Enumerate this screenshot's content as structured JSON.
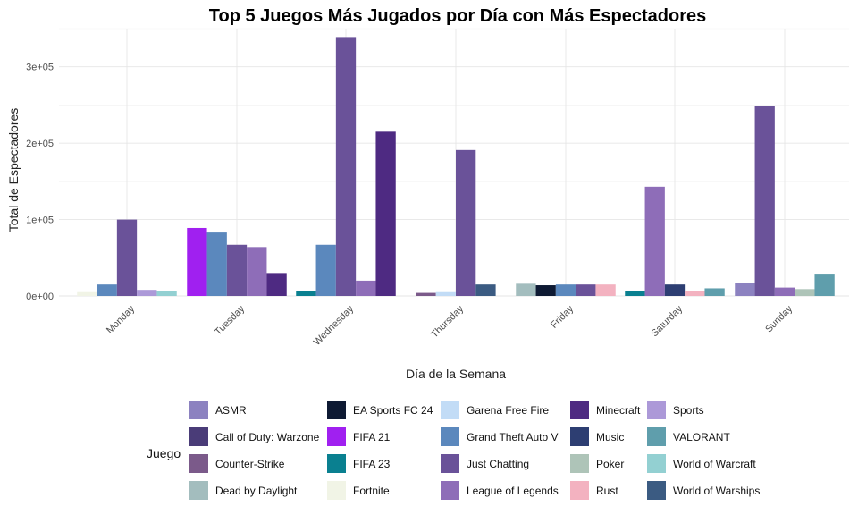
{
  "chart_data": {
    "type": "bar",
    "title": "Top 5 Juegos Más Jugados por Día con Más Espectadores",
    "xlabel": "Día de la Semana",
    "ylabel": "Total de Espectadores",
    "ylim": [
      0,
      350000
    ],
    "yticks": [
      0,
      100000,
      200000,
      300000
    ],
    "ytick_labels": [
      "0e+00",
      "1e+05",
      "2e+05",
      "3e+05"
    ],
    "grid": true,
    "legend_title": "Juego",
    "legend_position": "bottom",
    "categories": [
      "Monday",
      "Tuesday",
      "Wednesday",
      "Thursday",
      "Friday",
      "Saturday",
      "Sunday"
    ],
    "legend": [
      {
        "name": "ASMR",
        "color": "#8c82c0"
      },
      {
        "name": "Call of Duty: Warzone",
        "color": "#4a3c78"
      },
      {
        "name": "Counter-Strike",
        "color": "#7b5a8a"
      },
      {
        "name": "Dead by Daylight",
        "color": "#a3bdbe"
      },
      {
        "name": "EA Sports FC 24",
        "color": "#0e1a33"
      },
      {
        "name": "FIFA 21",
        "color": "#a020f0"
      },
      {
        "name": "FIFA 23",
        "color": "#0a8090"
      },
      {
        "name": "Fortnite",
        "color": "#f1f4e6"
      },
      {
        "name": "Garena Free Fire",
        "color": "#c2dcf6"
      },
      {
        "name": "Grand Theft Auto V",
        "color": "#5b88bd"
      },
      {
        "name": "Just Chatting",
        "color": "#6a5299"
      },
      {
        "name": "League of Legends",
        "color": "#8e6db8"
      },
      {
        "name": "Minecraft",
        "color": "#4e2a82"
      },
      {
        "name": "Music",
        "color": "#2d3e72"
      },
      {
        "name": "Poker",
        "color": "#aec4b8"
      },
      {
        "name": "Rust",
        "color": "#f3b2c0"
      },
      {
        "name": "Sports",
        "color": "#ac99d8"
      },
      {
        "name": "VALORANT",
        "color": "#5f9eac"
      },
      {
        "name": "World of Warcraft",
        "color": "#93d0d2"
      },
      {
        "name": "World of Warships",
        "color": "#3b5b82"
      }
    ],
    "groups": [
      {
        "day": "Monday",
        "bars": [
          {
            "game": "Fortnite",
            "value": 5000
          },
          {
            "game": "Grand Theft Auto V",
            "value": 15000
          },
          {
            "game": "Just Chatting",
            "value": 100000
          },
          {
            "game": "Sports",
            "value": 8000
          },
          {
            "game": "World of Warcraft",
            "value": 6000
          }
        ]
      },
      {
        "day": "Tuesday",
        "bars": [
          {
            "game": "FIFA 21",
            "value": 89000
          },
          {
            "game": "Grand Theft Auto V",
            "value": 83000
          },
          {
            "game": "Just Chatting",
            "value": 67000
          },
          {
            "game": "League of Legends",
            "value": 64000
          },
          {
            "game": "Minecraft",
            "value": 30000
          }
        ]
      },
      {
        "day": "Wednesday",
        "bars": [
          {
            "game": "FIFA 23",
            "value": 7000
          },
          {
            "game": "Grand Theft Auto V",
            "value": 67000
          },
          {
            "game": "Just Chatting",
            "value": 339000
          },
          {
            "game": "League of Legends",
            "value": 20000
          },
          {
            "game": "Minecraft",
            "value": 215000
          }
        ]
      },
      {
        "day": "Thursday",
        "bars": [
          {
            "game": "Counter-Strike",
            "value": 4000
          },
          {
            "game": "Garena Free Fire",
            "value": 5000
          },
          {
            "game": "Just Chatting",
            "value": 191000
          },
          {
            "game": "World of Warships",
            "value": 15000
          }
        ]
      },
      {
        "day": "Friday",
        "bars": [
          {
            "game": "Dead by Daylight",
            "value": 16000
          },
          {
            "game": "EA Sports FC 24",
            "value": 14000
          },
          {
            "game": "Grand Theft Auto V",
            "value": 15000
          },
          {
            "game": "Just Chatting",
            "value": 15000
          },
          {
            "game": "Rust",
            "value": 15000
          }
        ]
      },
      {
        "day": "Saturday",
        "bars": [
          {
            "game": "FIFA 23",
            "value": 6000
          },
          {
            "game": "League of Legends",
            "value": 143000
          },
          {
            "game": "Music",
            "value": 15000
          },
          {
            "game": "Rust",
            "value": 6000
          },
          {
            "game": "VALORANT",
            "value": 10000
          }
        ]
      },
      {
        "day": "Sunday",
        "bars": [
          {
            "game": "ASMR",
            "value": 17000
          },
          {
            "game": "Just Chatting",
            "value": 249000
          },
          {
            "game": "League of Legends",
            "value": 11000
          },
          {
            "game": "Poker",
            "value": 9000
          },
          {
            "game": "VALORANT",
            "value": 28000
          }
        ]
      }
    ]
  }
}
